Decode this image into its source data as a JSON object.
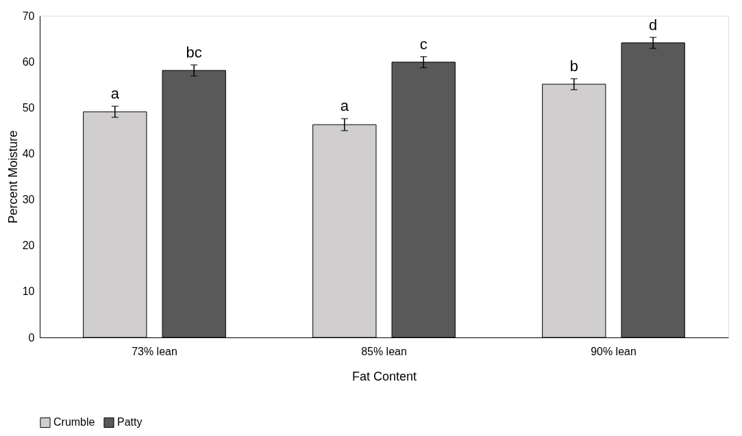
{
  "chart_data": {
    "type": "bar",
    "xlabel": "Fat Content",
    "ylabel": "Percent Moisture",
    "categories": [
      "73% lean",
      "85% lean",
      "90% lean"
    ],
    "series": [
      {
        "name": "Crumble",
        "color": "#d0cece",
        "values": [
          49.1,
          46.3,
          55.1
        ],
        "errors": [
          1.2,
          1.3,
          1.2
        ],
        "value_labels": [
          "a",
          "a",
          "b"
        ]
      },
      {
        "name": "Patty",
        "color": "#595959",
        "values": [
          58.1,
          59.9,
          64.1
        ],
        "errors": [
          1.2,
          1.2,
          1.2
        ],
        "value_labels": [
          "bc",
          "c",
          "d"
        ]
      }
    ],
    "ylim": [
      0,
      70
    ],
    "yticks": [
      0,
      10,
      20,
      30,
      40,
      50,
      60,
      70
    ],
    "grid": false,
    "legend": "bottom"
  }
}
